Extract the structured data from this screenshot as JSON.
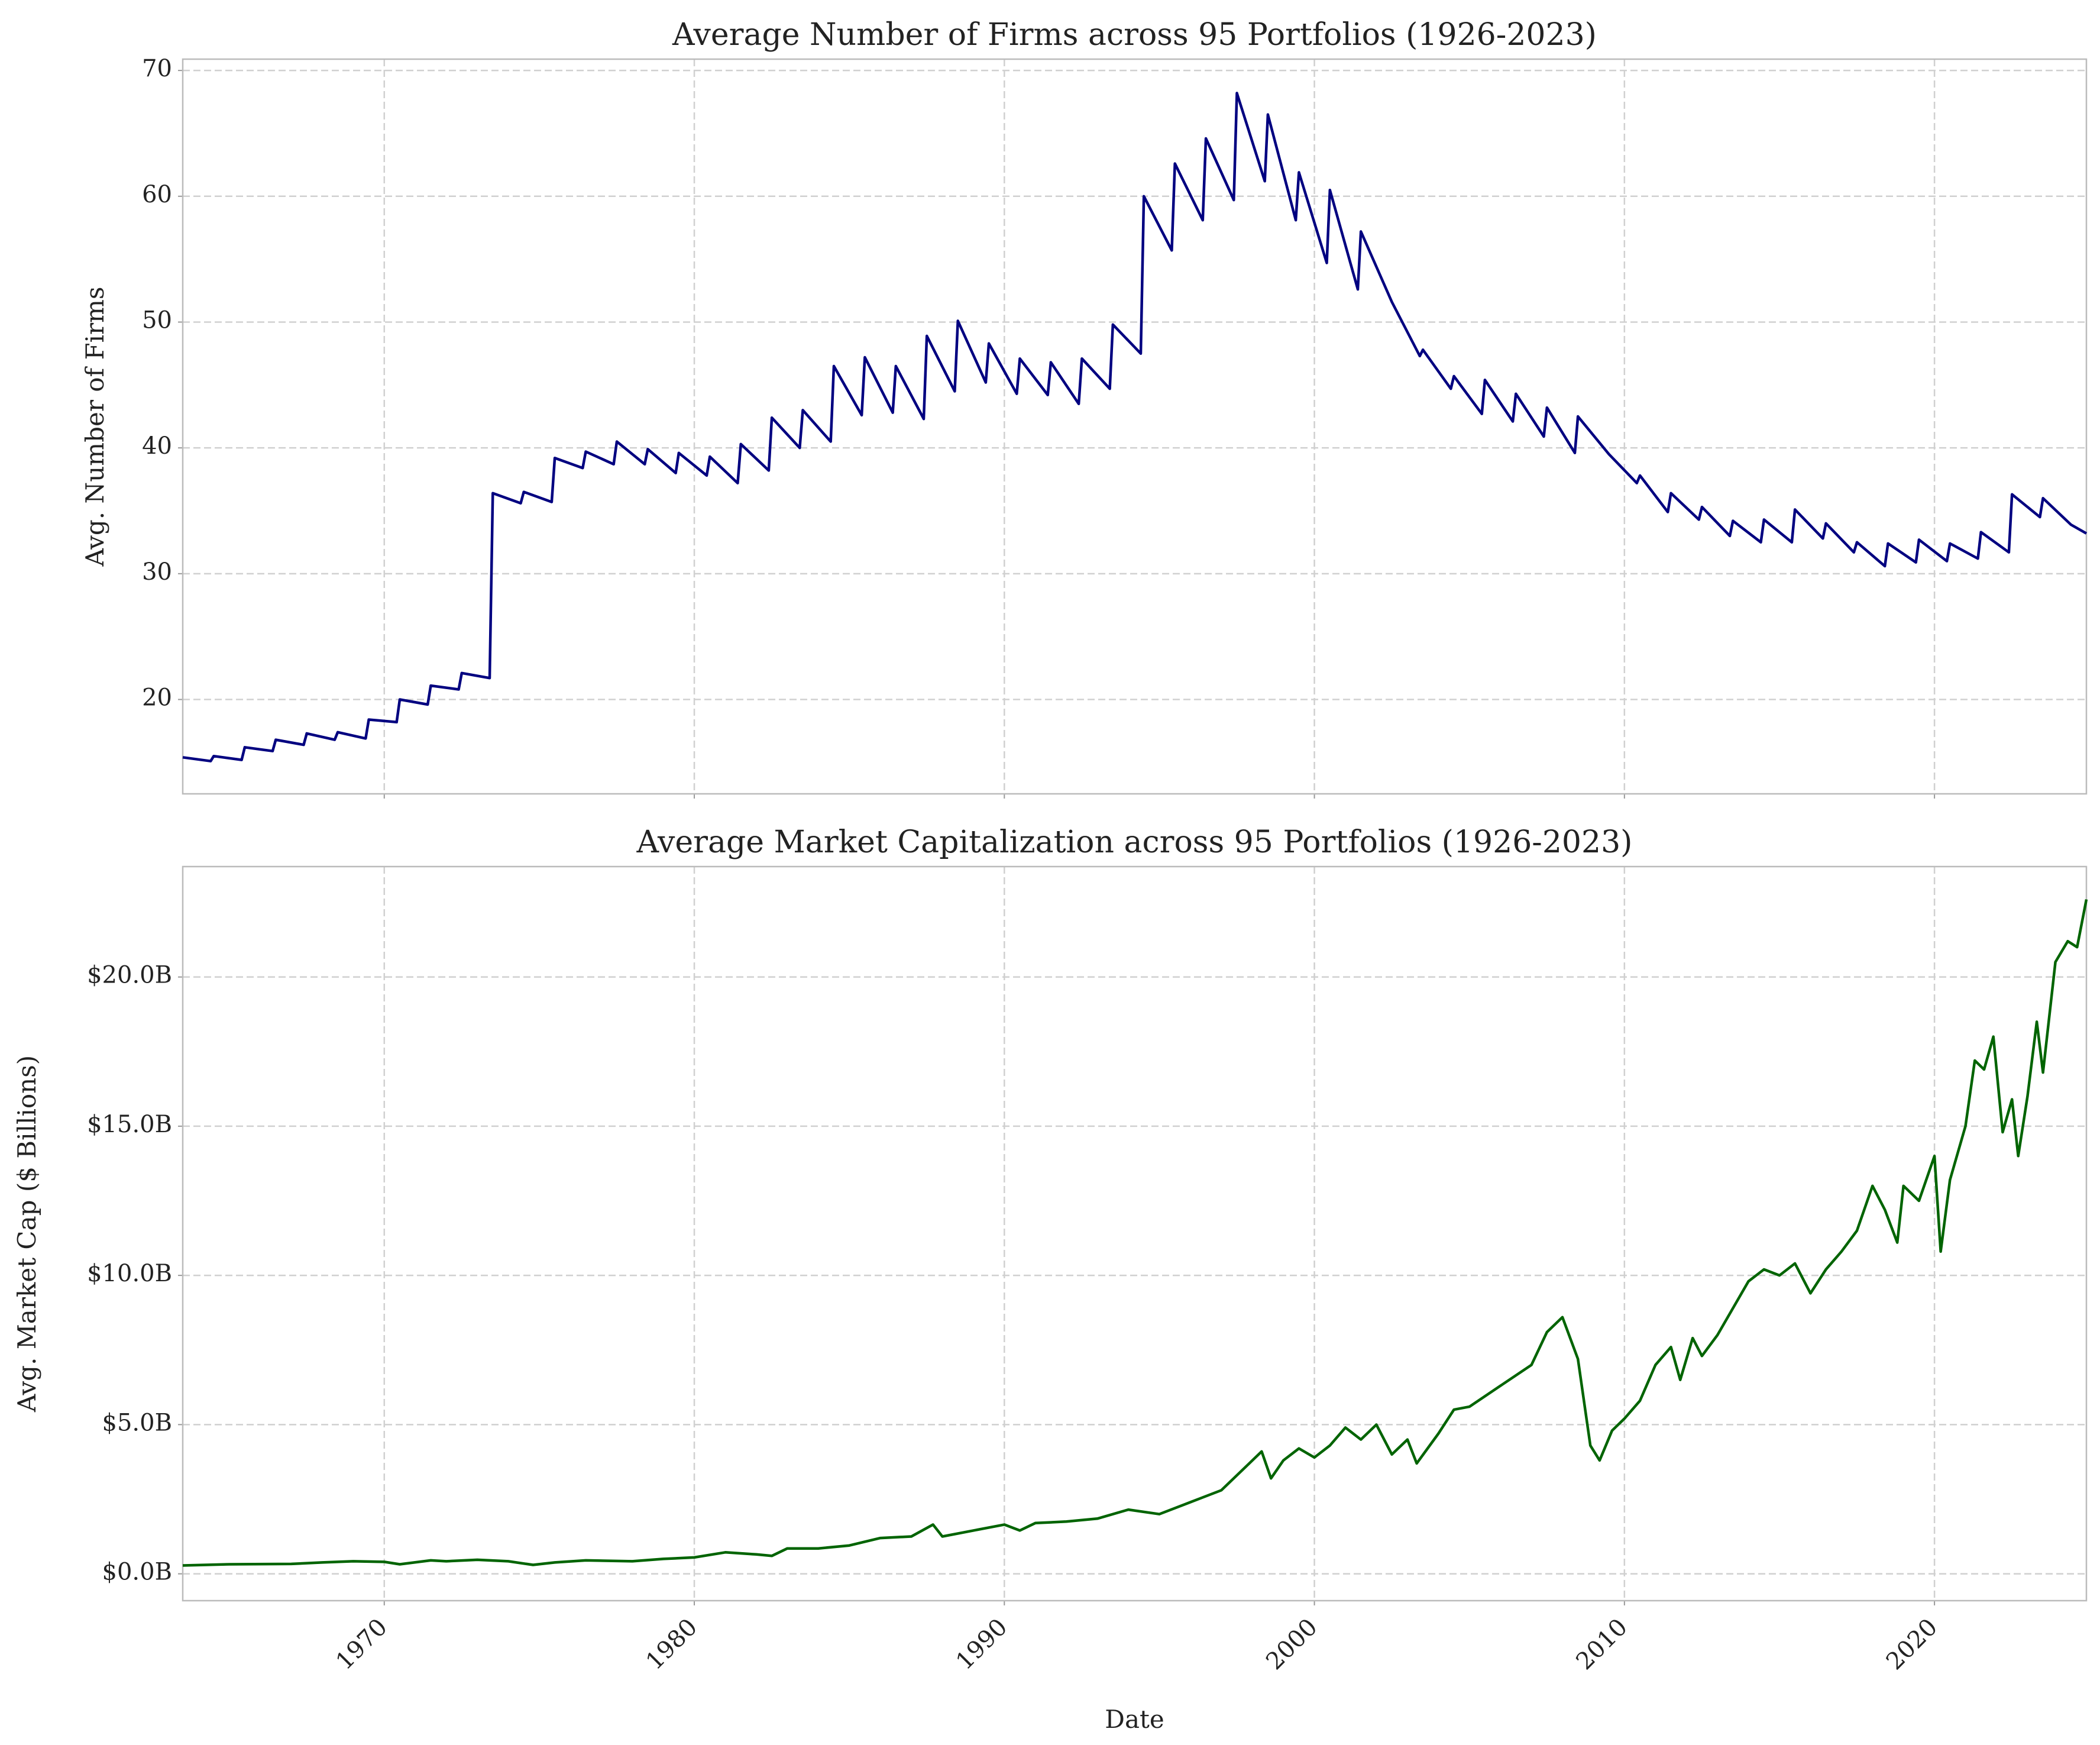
{
  "chart_data": [
    {
      "type": "line",
      "title": "Average Number of Firms across 95 Portfolios (1926-2023)",
      "y_label": "Avg. Number of Firms",
      "color": "#000080",
      "grid": true,
      "xlim": [
        1963.5,
        2024.9
      ],
      "xticks": [
        1970,
        1980,
        1990,
        2000,
        2010,
        2020
      ],
      "ylim": [
        12.5,
        70.9
      ],
      "yticks": [
        20,
        30,
        40,
        50,
        60,
        70
      ],
      "x": [
        1963.5,
        1964.4,
        1964.5,
        1965.4,
        1965.5,
        1966.4,
        1966.5,
        1967.4,
        1967.5,
        1968.4,
        1968.5,
        1969.4,
        1969.5,
        1970.4,
        1970.5,
        1971.4,
        1971.5,
        1972.4,
        1972.5,
        1973.4,
        1973.5,
        1974.4,
        1974.5,
        1975.4,
        1975.5,
        1976.4,
        1976.5,
        1977.4,
        1977.5,
        1978.4,
        1978.5,
        1979.4,
        1979.5,
        1980.4,
        1980.5,
        1981.4,
        1981.5,
        1982.4,
        1982.5,
        1983.4,
        1983.5,
        1984.4,
        1984.5,
        1985.4,
        1985.5,
        1986.4,
        1986.5,
        1987.4,
        1987.5,
        1988.4,
        1988.5,
        1989.4,
        1989.5,
        1990.4,
        1990.5,
        1991.4,
        1991.5,
        1992.4,
        1992.5,
        1993.4,
        1993.5,
        1994.4,
        1994.5,
        1995.4,
        1995.5,
        1996.4,
        1996.5,
        1997.4,
        1997.5,
        1998.4,
        1998.5,
        1999.4,
        1999.5,
        2000.4,
        2000.5,
        2001.4,
        2001.5,
        2002.5,
        2003.4,
        2003.5,
        2004.4,
        2004.5,
        2005.4,
        2005.5,
        2006.4,
        2006.5,
        2007.4,
        2007.5,
        2008.4,
        2008.5,
        2009.5,
        2010.4,
        2010.5,
        2011.4,
        2011.5,
        2012.4,
        2012.5,
        2013.4,
        2013.5,
        2014.4,
        2014.5,
        2015.4,
        2015.5,
        2016.4,
        2016.5,
        2017.4,
        2017.5,
        2018.4,
        2018.5,
        2019.4,
        2019.5,
        2020.4,
        2020.5,
        2021.4,
        2021.5,
        2022.4,
        2022.5,
        2023.4,
        2023.5,
        2024.4,
        2024.9
      ],
      "values": [
        15.4,
        15.1,
        15.5,
        15.2,
        16.2,
        15.9,
        16.8,
        16.4,
        17.3,
        16.8,
        17.4,
        16.9,
        18.4,
        18.2,
        20.0,
        19.6,
        21.1,
        20.8,
        22.1,
        21.7,
        36.4,
        35.6,
        36.5,
        35.7,
        39.2,
        38.4,
        39.7,
        38.7,
        40.5,
        38.7,
        39.9,
        38.0,
        39.6,
        37.8,
        39.3,
        37.2,
        40.3,
        38.2,
        42.4,
        40.0,
        43.0,
        40.5,
        46.5,
        42.6,
        47.2,
        42.8,
        46.5,
        42.3,
        48.9,
        44.5,
        50.1,
        45.2,
        48.3,
        44.3,
        47.1,
        44.2,
        46.8,
        43.5,
        47.1,
        44.7,
        49.8,
        47.5,
        60.0,
        55.7,
        62.6,
        58.1,
        64.6,
        59.7,
        68.2,
        61.2,
        66.5,
        58.1,
        61.9,
        54.7,
        60.5,
        52.6,
        57.2,
        51.6,
        47.3,
        47.8,
        44.7,
        45.7,
        42.7,
        45.4,
        42.1,
        44.3,
        40.9,
        43.2,
        39.6,
        42.5,
        39.5,
        37.2,
        37.8,
        34.9,
        36.4,
        34.3,
        35.3,
        33.0,
        34.2,
        32.5,
        34.3,
        32.5,
        35.1,
        32.8,
        34.0,
        31.7,
        32.5,
        30.6,
        32.4,
        30.9,
        32.7,
        31.0,
        32.4,
        31.2,
        33.3,
        31.7,
        36.3,
        34.5,
        36.0,
        33.9,
        33.2
      ]
    },
    {
      "type": "line",
      "title": "Average Market Capitalization across 95 Portfolios (1926-2023)",
      "x_label": "Date",
      "y_label": "Avg. Market Cap ($ Billions)",
      "color": "#006400",
      "grid": true,
      "xlim": [
        1963.5,
        2024.9
      ],
      "xticks": [
        1970,
        1980,
        1990,
        2000,
        2010,
        2020
      ],
      "ylim": [
        -0.9,
        23.7
      ],
      "yticks": [
        {
          "value": 0,
          "label": "$0.0B"
        },
        {
          "value": 5,
          "label": "$5.0B"
        },
        {
          "value": 10,
          "label": "$10.0B"
        },
        {
          "value": 15,
          "label": "$15.0B"
        },
        {
          "value": 20,
          "label": "$20.0B"
        }
      ],
      "x": [
        1963.5,
        1965,
        1967,
        1968,
        1969,
        1970,
        1970.5,
        1971.5,
        1972,
        1973,
        1974,
        1974.8,
        1975.5,
        1976.5,
        1978,
        1979,
        1980,
        1981,
        1982,
        1982.5,
        1983,
        1984,
        1985,
        1986,
        1987,
        1987.7,
        1988,
        1989,
        1990,
        1990.5,
        1991,
        1992,
        1993,
        1994,
        1995,
        1996,
        1997,
        1997.8,
        1998.3,
        1998.6,
        1999,
        1999.5,
        2000,
        2000.5,
        2001,
        2001.5,
        2002,
        2002.5,
        2003,
        2003.3,
        2004,
        2004.5,
        2005,
        2006,
        2007,
        2007.5,
        2008,
        2008.5,
        2008.9,
        2009.2,
        2009.6,
        2010,
        2010.5,
        2011,
        2011.5,
        2011.8,
        2012.2,
        2012.5,
        2013,
        2014,
        2014.5,
        2015,
        2015.5,
        2016,
        2016.5,
        2017,
        2017.5,
        2018,
        2018.4,
        2018.8,
        2019,
        2019.5,
        2020,
        2020.2,
        2020.5,
        2021,
        2021.3,
        2021.6,
        2021.9,
        2022.2,
        2022.5,
        2022.7,
        2023,
        2023.3,
        2023.5,
        2023.9,
        2024.3,
        2024.6,
        2024.9
      ],
      "values": [
        0.28,
        0.32,
        0.33,
        0.38,
        0.42,
        0.4,
        0.32,
        0.45,
        0.42,
        0.47,
        0.42,
        0.3,
        0.38,
        0.45,
        0.42,
        0.5,
        0.55,
        0.72,
        0.65,
        0.6,
        0.85,
        0.85,
        0.95,
        1.2,
        1.25,
        1.65,
        1.25,
        1.45,
        1.65,
        1.45,
        1.7,
        1.75,
        1.85,
        2.15,
        2.0,
        2.4,
        2.8,
        3.6,
        4.1,
        3.2,
        3.8,
        4.2,
        3.9,
        4.3,
        4.9,
        4.5,
        5.0,
        4.0,
        4.5,
        3.7,
        4.7,
        5.5,
        5.6,
        6.3,
        7.0,
        8.1,
        8.6,
        7.2,
        4.3,
        3.8,
        4.8,
        5.2,
        5.8,
        7.0,
        7.6,
        6.5,
        7.9,
        7.3,
        8.0,
        9.8,
        10.2,
        10.0,
        10.4,
        9.4,
        10.2,
        10.8,
        11.5,
        13.0,
        12.2,
        11.1,
        13.0,
        12.5,
        14.0,
        10.8,
        13.2,
        15.0,
        17.2,
        16.9,
        18.0,
        14.8,
        15.9,
        14.0,
        16.0,
        18.5,
        16.8,
        20.5,
        21.2,
        21.0,
        22.6
      ]
    }
  ]
}
